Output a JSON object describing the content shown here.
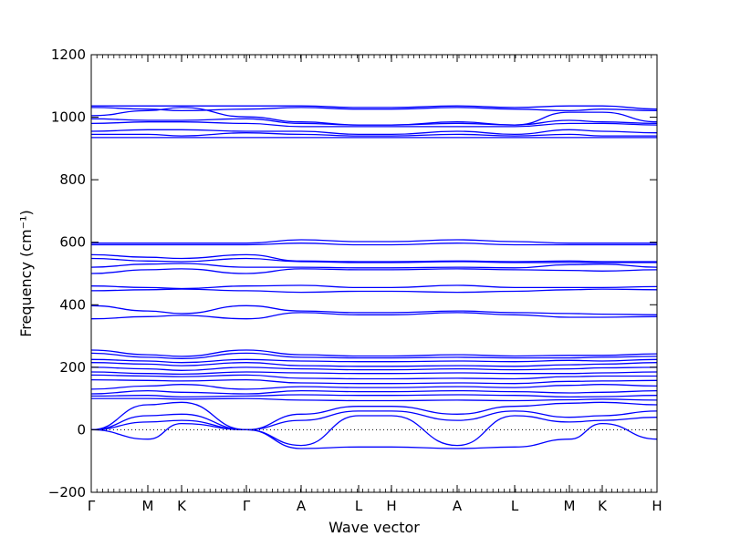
{
  "chart_data": {
    "type": "line",
    "xlabel": "Wave vector",
    "ylabel": "Frequency (cm⁻¹)",
    "ylim": [
      -200,
      1200
    ],
    "yticks": [
      -200,
      0,
      200,
      400,
      600,
      800,
      1000,
      1200
    ],
    "xlim": [
      0,
      620
    ],
    "xticks": [
      {
        "label": "Γ",
        "x": 0
      },
      {
        "label": "M",
        "x": 62
      },
      {
        "label": "K",
        "x": 99
      },
      {
        "label": "Γ",
        "x": 170
      },
      {
        "label": "A",
        "x": 230
      },
      {
        "label": "L",
        "x": 293
      },
      {
        "label": "H",
        "x": 329
      },
      {
        "label": "A",
        "x": 401
      },
      {
        "label": "L",
        "x": 464
      },
      {
        "label": "M",
        "x": 524
      },
      {
        "label": "K",
        "x": 560
      },
      {
        "label": "H",
        "x": 620
      }
    ],
    "zero_line": true,
    "line_color": "#0000ff",
    "series": [
      {
        "x": [
          0,
          62,
          99,
          170,
          230,
          293,
          329,
          401,
          464,
          524,
          560,
          620
        ],
        "values": [
          1036,
          1036,
          1036,
          1036,
          1036,
          1031,
          1031,
          1036,
          1031,
          1036,
          1036,
          1026
        ]
      },
      {
        "x": [
          0,
          62,
          99,
          170,
          230,
          293,
          329,
          401,
          464,
          524,
          560,
          620
        ],
        "values": [
          1031,
          1026,
          1021,
          1026,
          1031,
          1026,
          1026,
          1031,
          1026,
          1021,
          1026,
          1021
        ]
      },
      {
        "x": [
          0,
          62,
          99,
          170,
          230,
          293,
          329,
          401,
          464,
          524,
          560,
          620
        ],
        "values": [
          1005,
          1021,
          1031,
          1001,
          985,
          975,
          975,
          985,
          975,
          1016,
          1016,
          985
        ]
      },
      {
        "x": [
          0,
          62,
          99,
          170,
          230,
          293,
          329,
          401,
          464,
          524,
          560,
          620
        ],
        "values": [
          995,
          990,
          990,
          995,
          980,
          975,
          975,
          980,
          975,
          990,
          985,
          980
        ]
      },
      {
        "x": [
          0,
          62,
          99,
          170,
          230,
          293,
          329,
          401,
          464,
          524,
          560,
          620
        ],
        "values": [
          980,
          985,
          985,
          980,
          970,
          970,
          970,
          970,
          970,
          980,
          980,
          975
        ]
      },
      {
        "x": [
          0,
          62,
          99,
          170,
          230,
          293,
          329,
          401,
          464,
          524,
          560,
          620
        ],
        "values": [
          955,
          960,
          960,
          955,
          955,
          945,
          945,
          955,
          945,
          960,
          955,
          950
        ]
      },
      {
        "x": [
          0,
          62,
          99,
          170,
          230,
          293,
          329,
          401,
          464,
          524,
          560,
          620
        ],
        "values": [
          945,
          945,
          940,
          950,
          945,
          940,
          940,
          945,
          940,
          945,
          940,
          940
        ]
      },
      {
        "x": [
          0,
          62,
          99,
          170,
          230,
          293,
          329,
          401,
          464,
          524,
          560,
          620
        ],
        "values": [
          935,
          935,
          935,
          935,
          935,
          935,
          935,
          935,
          935,
          935,
          935,
          935
        ]
      },
      {
        "x": [
          0,
          62,
          99,
          170,
          230,
          293,
          329,
          401,
          464,
          524,
          560,
          620
        ],
        "values": [
          597,
          597,
          597,
          597,
          608,
          602,
          602,
          608,
          602,
          597,
          597,
          597
        ]
      },
      {
        "x": [
          0,
          62,
          99,
          170,
          230,
          293,
          329,
          401,
          464,
          524,
          560,
          620
        ],
        "values": [
          592,
          592,
          592,
          592,
          597,
          592,
          592,
          597,
          592,
          592,
          592,
          592
        ]
      },
      {
        "x": [
          0,
          62,
          99,
          170,
          230,
          293,
          329,
          401,
          464,
          524,
          560,
          620
        ],
        "values": [
          560,
          552,
          548,
          560,
          540,
          538,
          538,
          540,
          538,
          540,
          538,
          538
        ]
      },
      {
        "x": [
          0,
          62,
          99,
          170,
          230,
          293,
          329,
          401,
          464,
          524,
          560,
          620
        ],
        "values": [
          548,
          540,
          538,
          548,
          538,
          535,
          535,
          538,
          535,
          535,
          535,
          535
        ]
      },
      {
        "x": [
          0,
          62,
          99,
          170,
          230,
          293,
          329,
          401,
          464,
          524,
          560,
          620
        ],
        "values": [
          520,
          530,
          532,
          520,
          520,
          518,
          518,
          520,
          518,
          528,
          530,
          520
        ]
      },
      {
        "x": [
          0,
          62,
          99,
          170,
          230,
          293,
          329,
          401,
          464,
          524,
          560,
          620
        ],
        "values": [
          500,
          512,
          515,
          500,
          515,
          512,
          512,
          515,
          512,
          510,
          508,
          512
        ]
      },
      {
        "x": [
          0,
          62,
          99,
          170,
          230,
          293,
          329,
          401,
          464,
          524,
          560,
          620
        ],
        "values": [
          460,
          455,
          452,
          460,
          462,
          455,
          455,
          462,
          455,
          455,
          455,
          458
        ]
      },
      {
        "x": [
          0,
          62,
          99,
          170,
          230,
          293,
          329,
          401,
          464,
          524,
          560,
          620
        ],
        "values": [
          445,
          448,
          450,
          445,
          440,
          443,
          443,
          440,
          443,
          448,
          450,
          448
        ]
      },
      {
        "x": [
          0,
          62,
          99,
          170,
          230,
          293,
          329,
          401,
          464,
          524,
          560,
          620
        ],
        "values": [
          397,
          380,
          372,
          397,
          380,
          375,
          375,
          380,
          375,
          372,
          370,
          368
        ]
      },
      {
        "x": [
          0,
          62,
          99,
          170,
          230,
          293,
          329,
          401,
          464,
          524,
          560,
          620
        ],
        "values": [
          355,
          362,
          366,
          355,
          375,
          368,
          368,
          375,
          368,
          360,
          360,
          362
        ]
      },
      {
        "x": [
          0,
          62,
          99,
          170,
          230,
          293,
          329,
          401,
          464,
          524,
          560,
          620
        ],
        "values": [
          255,
          240,
          235,
          255,
          240,
          236,
          236,
          240,
          236,
          238,
          238,
          243
        ]
      },
      {
        "x": [
          0,
          62,
          99,
          170,
          230,
          293,
          329,
          401,
          464,
          524,
          560,
          620
        ],
        "values": [
          245,
          232,
          228,
          245,
          232,
          230,
          230,
          232,
          230,
          230,
          232,
          235
        ]
      },
      {
        "x": [
          0,
          62,
          99,
          170,
          230,
          293,
          329,
          401,
          464,
          524,
          560,
          620
        ],
        "values": [
          225,
          220,
          215,
          225,
          220,
          218,
          218,
          220,
          218,
          222,
          220,
          225
        ]
      },
      {
        "x": [
          0,
          62,
          99,
          170,
          230,
          293,
          329,
          401,
          464,
          524,
          560,
          620
        ],
        "values": [
          215,
          210,
          205,
          215,
          205,
          203,
          203,
          205,
          203,
          208,
          210,
          215
        ]
      },
      {
        "x": [
          0,
          62,
          99,
          170,
          230,
          293,
          329,
          401,
          464,
          524,
          560,
          620
        ],
        "values": [
          200,
          195,
          190,
          200,
          195,
          192,
          192,
          195,
          192,
          195,
          198,
          200
        ]
      },
      {
        "x": [
          0,
          62,
          99,
          170,
          230,
          293,
          329,
          401,
          464,
          524,
          560,
          620
        ],
        "values": [
          185,
          180,
          178,
          185,
          182,
          180,
          180,
          182,
          180,
          180,
          182,
          185
        ]
      },
      {
        "x": [
          0,
          62,
          99,
          170,
          230,
          293,
          329,
          401,
          464,
          524,
          560,
          620
        ],
        "values": [
          175,
          172,
          170,
          175,
          165,
          163,
          163,
          165,
          163,
          170,
          172,
          172
        ]
      },
      {
        "x": [
          0,
          62,
          99,
          170,
          230,
          293,
          329,
          401,
          464,
          524,
          560,
          620
        ],
        "values": [
          160,
          158,
          156,
          160,
          150,
          148,
          148,
          150,
          148,
          155,
          156,
          158
        ]
      },
      {
        "x": [
          0,
          62,
          99,
          170,
          230,
          293,
          329,
          401,
          464,
          524,
          560,
          620
        ],
        "values": [
          130,
          140,
          145,
          130,
          138,
          135,
          135,
          138,
          135,
          142,
          145,
          140
        ]
      },
      {
        "x": [
          0,
          62,
          99,
          170,
          230,
          293,
          329,
          401,
          464,
          524,
          560,
          620
        ],
        "values": [
          115,
          125,
          120,
          115,
          125,
          122,
          122,
          125,
          122,
          118,
          120,
          125
        ]
      },
      {
        "x": [
          0,
          62,
          99,
          170,
          230,
          293,
          329,
          401,
          464,
          524,
          560,
          620
        ],
        "values": [
          108,
          110,
          105,
          108,
          112,
          110,
          110,
          112,
          110,
          105,
          106,
          110
        ]
      },
      {
        "x": [
          0,
          62,
          99,
          170,
          230,
          293,
          329,
          401,
          464,
          524,
          560,
          620
        ],
        "values": [
          100,
          100,
          98,
          100,
          95,
          93,
          93,
          95,
          93,
          96,
          98,
          95
        ]
      },
      {
        "x": [
          0,
          62,
          99,
          170,
          230,
          293,
          329,
          401,
          464,
          524,
          560,
          620
        ],
        "values": [
          0,
          80,
          88,
          0,
          50,
          75,
          75,
          50,
          75,
          85,
          88,
          80
        ]
      },
      {
        "x": [
          0,
          62,
          99,
          170,
          230,
          293,
          329,
          401,
          464,
          524,
          560,
          620
        ],
        "values": [
          0,
          45,
          50,
          0,
          30,
          60,
          60,
          30,
          60,
          40,
          45,
          60
        ]
      },
      {
        "x": [
          0,
          62,
          99,
          170,
          230,
          293,
          329,
          401,
          464,
          524,
          560,
          620
        ],
        "values": [
          0,
          25,
          30,
          0,
          -50,
          45,
          45,
          -50,
          45,
          25,
          30,
          40
        ]
      },
      {
        "x": [
          0,
          62,
          99,
          170,
          230,
          293,
          329,
          401,
          464,
          524,
          560,
          620
        ],
        "values": [
          0,
          -30,
          20,
          0,
          -60,
          -55,
          -55,
          -60,
          -55,
          -30,
          20,
          -30
        ]
      }
    ]
  }
}
